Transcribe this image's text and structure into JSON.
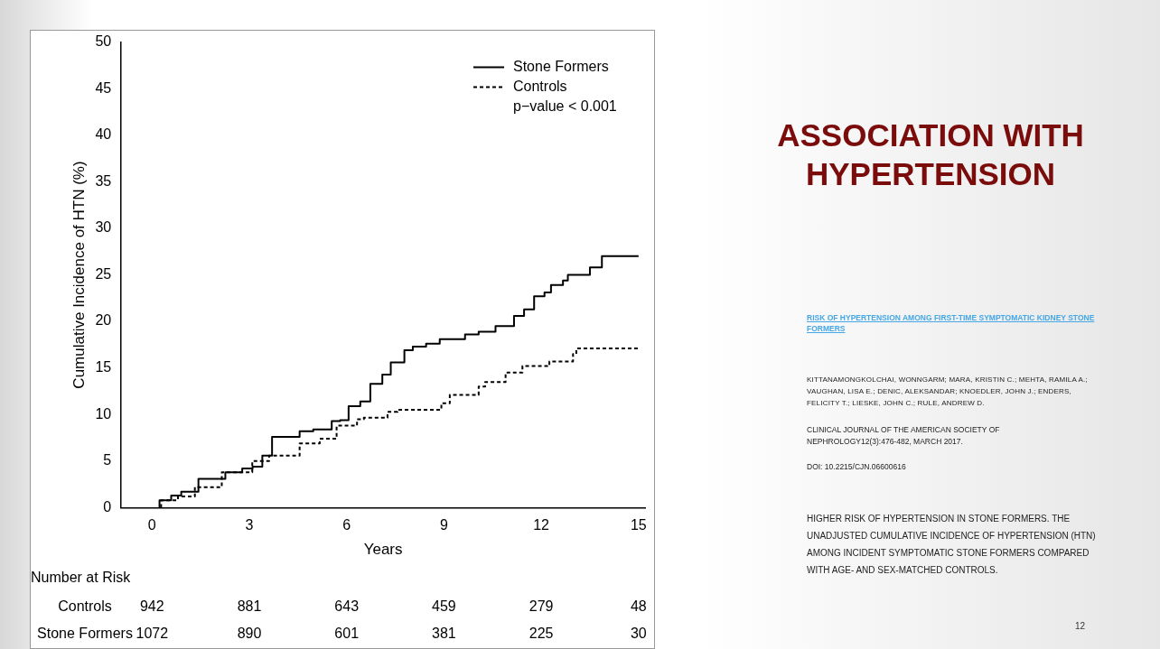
{
  "chart_data": {
    "type": "step",
    "title": "ASSOCIATION WITH HYPERTENSION",
    "subtitle": "RISK OF HYPERTENSION AMONG FIRST-TIME SYMPTOMATIC KIDNEY STONE FORMERS",
    "xlabel": "Years",
    "ylabel": "Cumulative Incidence of HTN (%)",
    "xlim": [
      -0.95,
      15.2
    ],
    "xticks": [
      0,
      3,
      6,
      9,
      12,
      15
    ],
    "ylim": [
      0,
      50
    ],
    "yticks": [
      0,
      5,
      10,
      15,
      20,
      25,
      30,
      35,
      40,
      45,
      50
    ],
    "grid": false,
    "legend": "top right",
    "series": [
      {
        "name": "Stone Formers",
        "color": "#000000",
        "line_style": "solid",
        "x": [
          0.23,
          0.59,
          0.9,
          1.43,
          2.26,
          2.78,
          3.1,
          3.4,
          3.7,
          4.55,
          4.97,
          5.54,
          5.8,
          6.06,
          6.42,
          6.73,
          7.1,
          7.36,
          7.78,
          8.04,
          8.45,
          8.87,
          9.65,
          10.07,
          10.59,
          11.16,
          11.47,
          11.78,
          12.1,
          12.3,
          12.67,
          12.82,
          13.5,
          13.87,
          14.62,
          15.0
        ],
        "values": [
          0,
          0.8,
          1.3,
          1.7,
          3.1,
          3.8,
          4.2,
          4.4,
          5.6,
          7.6,
          8.2,
          8.4,
          9.3,
          9.4,
          10.9,
          11.4,
          13.3,
          14.3,
          15.6,
          16.9,
          17.3,
          17.6,
          18.1,
          18.6,
          18.9,
          19.5,
          20.6,
          21.3,
          22.7,
          23.1,
          23.9,
          24.4,
          25.0,
          25.8,
          27.0,
          27.0
        ]
      },
      {
        "name": "Controls",
        "color": "#000000",
        "line_style": "dashed",
        "x": [
          0.28,
          0.8,
          1.32,
          2.15,
          3.09,
          3.61,
          4.55,
          5.17,
          5.69,
          6.32,
          6.53,
          7.26,
          7.57,
          8.92,
          9.18,
          10.07,
          10.27,
          10.9,
          11.42,
          12.25,
          12.98,
          13.08,
          13.66,
          14.98
        ],
        "values": [
          0,
          0.8,
          1.2,
          2.2,
          3.8,
          5.0,
          5.6,
          6.9,
          7.4,
          8.8,
          9.5,
          9.65,
          10.3,
          10.5,
          11.2,
          12.1,
          13.0,
          13.5,
          14.5,
          15.2,
          15.7,
          16.5,
          17.1,
          17.1
        ]
      }
    ],
    "annotations": [
      "p−value < 0.001",
      "Number at Risk",
      "Controls",
      "942",
      "881",
      "643",
      "459",
      "279",
      "48",
      "Stone Formers",
      "1072",
      "890",
      "601",
      "381",
      "225",
      "30",
      "KITTANAMONGKOLCHAI, WONNGARM; MARA, KRISTIN C.; MEHTA, RAMILA A.; VAUGHAN, LISA E.; DENIC, ALEKSANDAR; KNOEDLER, JOHN J.; ENDERS, FELICITY T.; LIESKE, JOHN C.; RULE, ANDREW D.",
      "CLINICAL JOURNAL OF THE AMERICAN SOCIETY OF NEPHROLOGY12(3):476-482, MARCH 2017.",
      "DOI: 10.2215/CJN.06600616",
      "HIGHER RISK OF HYPERTENSION IN STONE FORMERS. THE UNADJUSTED CUMULATIVE INCIDENCE OF HYPERTENSION (HTN) AMONG INCIDENT SYMPTOMATIC STONE FORMERS COMPARED WITH AGE- AND SEX-MATCHED CONTROLS.",
      "12"
    ]
  }
}
